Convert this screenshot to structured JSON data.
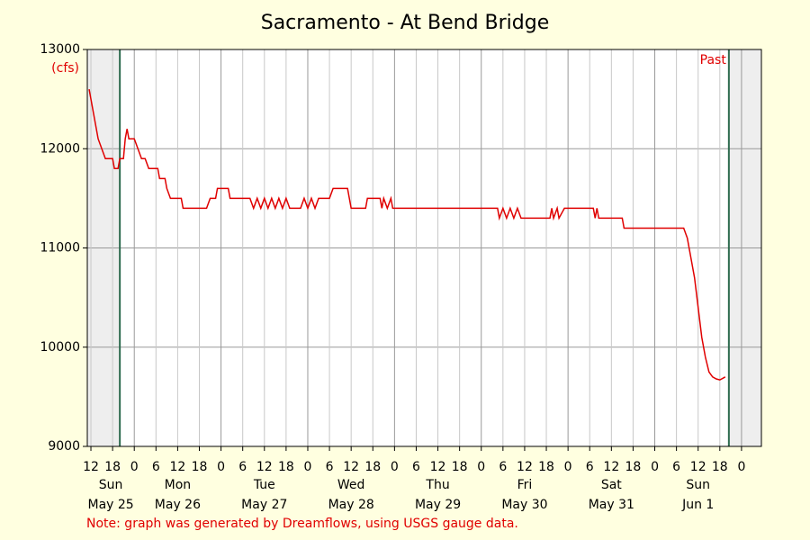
{
  "chart_data": {
    "type": "line",
    "title": "Sacramento - At Bend Bridge",
    "y_unit": "(cfs)",
    "past_label": "Past",
    "note": "Note: graph was generated by Dreamflows, using USGS gauge data.",
    "xlim": [
      11,
      197.5
    ],
    "past_window": [
      20,
      188.5
    ],
    "ylim": [
      9000,
      13000
    ],
    "yticks": [
      9000,
      10000,
      11000,
      12000,
      13000
    ],
    "xticks": [
      {
        "value": 12,
        "label": "12"
      },
      {
        "value": 18,
        "label": "18"
      },
      {
        "value": 24,
        "label": "0"
      },
      {
        "value": 30,
        "label": "6"
      },
      {
        "value": 36,
        "label": "12"
      },
      {
        "value": 42,
        "label": "18"
      },
      {
        "value": 48,
        "label": "0"
      },
      {
        "value": 54,
        "label": "6"
      },
      {
        "value": 60,
        "label": "12"
      },
      {
        "value": 66,
        "label": "18"
      },
      {
        "value": 72,
        "label": "0"
      },
      {
        "value": 78,
        "label": "6"
      },
      {
        "value": 84,
        "label": "12"
      },
      {
        "value": 90,
        "label": "18"
      },
      {
        "value": 96,
        "label": "0"
      },
      {
        "value": 102,
        "label": "6"
      },
      {
        "value": 108,
        "label": "12"
      },
      {
        "value": 114,
        "label": "18"
      },
      {
        "value": 120,
        "label": "0"
      },
      {
        "value": 126,
        "label": "6"
      },
      {
        "value": 132,
        "label": "12"
      },
      {
        "value": 138,
        "label": "18"
      },
      {
        "value": 144,
        "label": "0"
      },
      {
        "value": 150,
        "label": "6"
      },
      {
        "value": 156,
        "label": "12"
      },
      {
        "value": 162,
        "label": "18"
      },
      {
        "value": 168,
        "label": "0"
      },
      {
        "value": 174,
        "label": "6"
      },
      {
        "value": 180,
        "label": "12"
      },
      {
        "value": 186,
        "label": "18"
      },
      {
        "value": 192,
        "label": "0"
      }
    ],
    "days": [
      {
        "weekday": "Sun",
        "date": "May 25"
      },
      {
        "weekday": "Mon",
        "date": "May 26"
      },
      {
        "weekday": "Tue",
        "date": "May 27"
      },
      {
        "weekday": "Wed",
        "date": "May 28"
      },
      {
        "weekday": "Thu",
        "date": "May 29"
      },
      {
        "weekday": "Fri",
        "date": "May 30"
      },
      {
        "weekday": "Sat",
        "date": "May 31"
      },
      {
        "weekday": "Sun",
        "date": "Jun 1"
      }
    ],
    "grid": true,
    "series": [
      {
        "name": "Flow",
        "color": "#e00000",
        "x": [
          11.5,
          12,
          13,
          14,
          15,
          16,
          18,
          18.5,
          19.5,
          20,
          21,
          21.5,
          22,
          22.5,
          24,
          25,
          26,
          27,
          28,
          30.5,
          31,
          32.5,
          33,
          34,
          37,
          37.5,
          44,
          45,
          46.5,
          47,
          50,
          50.5,
          56,
          57,
          58,
          59,
          60,
          61,
          62,
          63,
          64,
          65,
          66,
          67,
          70,
          71,
          72,
          73,
          74,
          75,
          78,
          79,
          83,
          84,
          88,
          88.5,
          92,
          92.5,
          93,
          94,
          95,
          95.5,
          124.5,
          125,
          126,
          127,
          128,
          129,
          130,
          131,
          139,
          139.5,
          140,
          141,
          141.5,
          143,
          151,
          151.5,
          152,
          152.5,
          159,
          159.5,
          176,
          177,
          178,
          179,
          180,
          181,
          182,
          183,
          184,
          185,
          186,
          187,
          187.5
        ],
        "values": [
          12600,
          12500,
          12300,
          12100,
          12000,
          11900,
          11900,
          11800,
          11800,
          11900,
          11900,
          12100,
          12200,
          12100,
          12100,
          12000,
          11900,
          11900,
          11800,
          11800,
          11700,
          11700,
          11600,
          11500,
          11500,
          11400,
          11400,
          11500,
          11500,
          11600,
          11600,
          11500,
          11500,
          11400,
          11500,
          11400,
          11500,
          11400,
          11500,
          11400,
          11500,
          11400,
          11500,
          11400,
          11400,
          11500,
          11400,
          11500,
          11400,
          11500,
          11500,
          11600,
          11600,
          11400,
          11400,
          11500,
          11500,
          11400,
          11500,
          11400,
          11500,
          11400,
          11400,
          11300,
          11400,
          11300,
          11400,
          11300,
          11400,
          11300,
          11300,
          11400,
          11300,
          11400,
          11300,
          11400,
          11400,
          11300,
          11400,
          11300,
          11300,
          11200,
          11200,
          11100,
          10900,
          10700,
          10400,
          10100,
          9900,
          9750,
          9700,
          9680,
          9670,
          9690,
          9700
        ]
      }
    ]
  }
}
